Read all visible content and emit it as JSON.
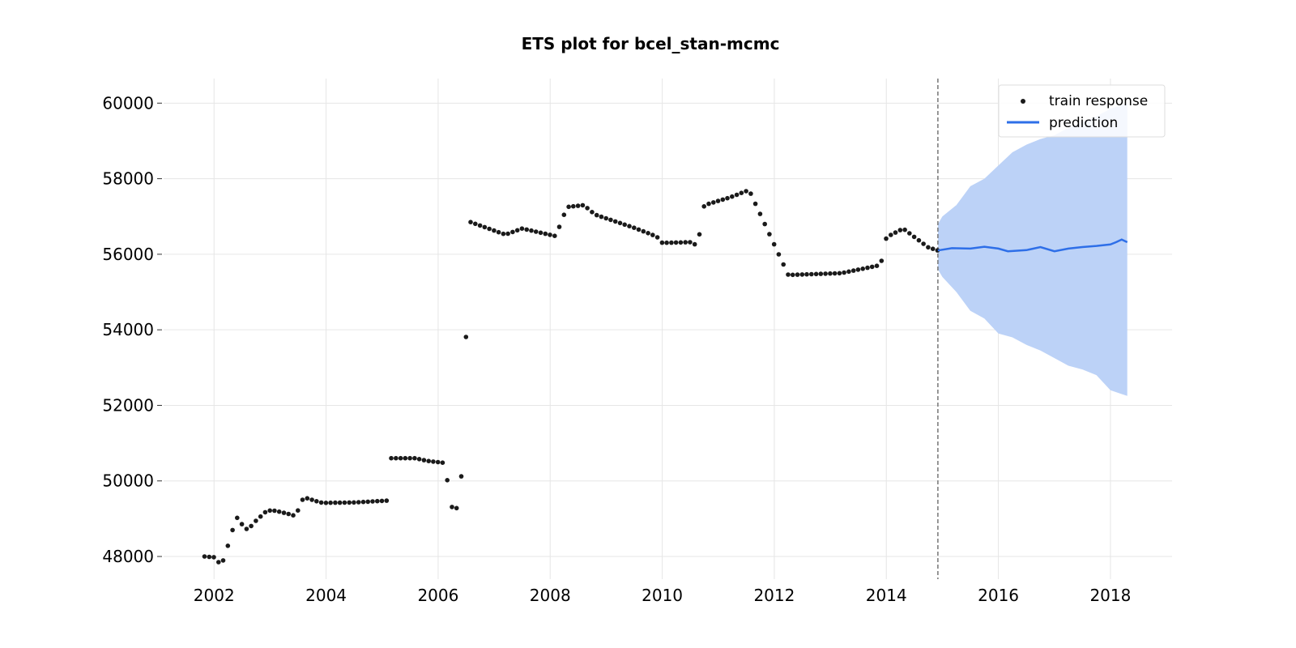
{
  "chart_data": {
    "type": "line",
    "title": "ETS plot for bcel_stan-mcmc",
    "xlabel": "",
    "ylabel": "",
    "xlim": [
      2001.1,
      2019.1
    ],
    "ylim": [
      47400,
      60650
    ],
    "x_ticks": [
      "2002",
      "2004",
      "2006",
      "2008",
      "2010",
      "2012",
      "2014",
      "2016",
      "2018"
    ],
    "y_ticks": [
      "48000",
      "50000",
      "52000",
      "54000",
      "56000",
      "58000",
      "60000"
    ],
    "grid": true,
    "legend_position": "top-right",
    "legend": [
      "train response",
      "prediction"
    ],
    "cutoff_x": 2014.92,
    "colors": {
      "train": "#1a1a1a",
      "prediction": "#2e6fe8",
      "band": "#bcd2f7",
      "cutoff": "#777777"
    },
    "train_anchors": [
      [
        2001.83,
        48000
      ],
      [
        2002.0,
        47980
      ],
      [
        2002.08,
        47850
      ],
      [
        2002.17,
        47900
      ],
      [
        2002.33,
        48700
      ],
      [
        2002.4,
        49050
      ],
      [
        2002.5,
        48850
      ],
      [
        2002.6,
        48700
      ],
      [
        2002.75,
        48950
      ],
      [
        2002.95,
        49220
      ],
      [
        2003.1,
        49210
      ],
      [
        2003.4,
        49100
      ],
      [
        2003.45,
        49060
      ],
      [
        2003.55,
        49400
      ],
      [
        2003.6,
        49570
      ],
      [
        2003.9,
        49430
      ],
      [
        2004.0,
        49420
      ],
      [
        2004.5,
        49430
      ],
      [
        2005.1,
        49480
      ],
      [
        2005.15,
        50600
      ],
      [
        2005.6,
        50600
      ],
      [
        2005.8,
        50530
      ],
      [
        2006.1,
        50480
      ],
      [
        2006.18,
        49900
      ],
      [
        2006.25,
        49280
      ],
      [
        2006.4,
        49280
      ],
      [
        2006.45,
        52430
      ],
      [
        2006.52,
        54500
      ],
      [
        2006.58,
        56850
      ],
      [
        2007.2,
        56520
      ],
      [
        2007.5,
        56680
      ],
      [
        2008.1,
        56480
      ],
      [
        2008.3,
        57250
      ],
      [
        2008.6,
        57300
      ],
      [
        2008.8,
        57050
      ],
      [
        2009.5,
        56700
      ],
      [
        2009.9,
        56470
      ],
      [
        2010.0,
        56300
      ],
      [
        2010.5,
        56320
      ],
      [
        2010.6,
        56250
      ],
      [
        2010.68,
        56600
      ],
      [
        2010.75,
        57300
      ],
      [
        2011.2,
        57500
      ],
      [
        2011.55,
        57700
      ],
      [
        2012.25,
        55450
      ],
      [
        2013.2,
        55500
      ],
      [
        2013.85,
        55700
      ],
      [
        2013.95,
        55900
      ],
      [
        2014.0,
        56450
      ],
      [
        2014.3,
        56680
      ],
      [
        2014.75,
        56180
      ],
      [
        2014.92,
        56100
      ]
    ],
    "train_step_months": 1,
    "prediction": [
      [
        2014.92,
        56100
      ],
      [
        2015.17,
        56160
      ],
      [
        2015.5,
        56150
      ],
      [
        2015.75,
        56200
      ],
      [
        2016.0,
        56150
      ],
      [
        2016.17,
        56080
      ],
      [
        2016.5,
        56110
      ],
      [
        2016.75,
        56190
      ],
      [
        2017.0,
        56080
      ],
      [
        2017.25,
        56150
      ],
      [
        2017.5,
        56190
      ],
      [
        2017.75,
        56220
      ],
      [
        2018.0,
        56260
      ],
      [
        2018.1,
        56320
      ],
      [
        2018.2,
        56390
      ],
      [
        2018.3,
        56320
      ]
    ],
    "prediction_band": [
      [
        2014.92,
        56800,
        55600
      ],
      [
        2015.0,
        57000,
        55400
      ],
      [
        2015.25,
        57300,
        55000
      ],
      [
        2015.5,
        57800,
        54500
      ],
      [
        2015.75,
        58000,
        54300
      ],
      [
        2016.0,
        58350,
        53900
      ],
      [
        2016.25,
        58700,
        53800
      ],
      [
        2016.5,
        58900,
        53600
      ],
      [
        2016.75,
        59050,
        53450
      ],
      [
        2017.0,
        59150,
        53250
      ],
      [
        2017.25,
        59350,
        53050
      ],
      [
        2017.5,
        59500,
        52950
      ],
      [
        2017.75,
        59650,
        52800
      ],
      [
        2018.0,
        59850,
        52400
      ],
      [
        2018.2,
        59950,
        52300
      ],
      [
        2018.3,
        60000,
        52250
      ]
    ]
  }
}
